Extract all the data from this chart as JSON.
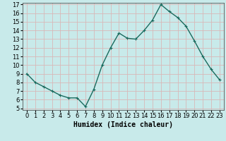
{
  "x": [
    0,
    1,
    2,
    3,
    4,
    5,
    6,
    7,
    8,
    9,
    10,
    11,
    12,
    13,
    14,
    15,
    16,
    17,
    18,
    19,
    20,
    21,
    22,
    23
  ],
  "y": [
    9,
    8,
    7.5,
    7,
    6.5,
    6.2,
    6.2,
    5.2,
    7.2,
    10,
    12,
    13.7,
    13.1,
    13,
    14,
    15.2,
    17,
    16.2,
    15.5,
    14.5,
    12.8,
    11,
    9.5,
    8.3
  ],
  "line_color": "#1a6b5e",
  "marker": "+",
  "marker_size": 3,
  "bg_color": "#c8eaea",
  "grid_color": "#d8b8b8",
  "title": "",
  "xlabel": "Humidex (Indice chaleur)",
  "ylabel": "",
  "xlim": [
    -0.5,
    23.5
  ],
  "ylim": [
    5,
    17
  ],
  "yticks": [
    5,
    6,
    7,
    8,
    9,
    10,
    11,
    12,
    13,
    14,
    15,
    16,
    17
  ],
  "xticks": [
    0,
    1,
    2,
    3,
    4,
    5,
    6,
    7,
    8,
    9,
    10,
    11,
    12,
    13,
    14,
    15,
    16,
    17,
    18,
    19,
    20,
    21,
    22,
    23
  ],
  "xlabel_fontsize": 7,
  "tick_fontsize": 6,
  "line_width": 1.0
}
